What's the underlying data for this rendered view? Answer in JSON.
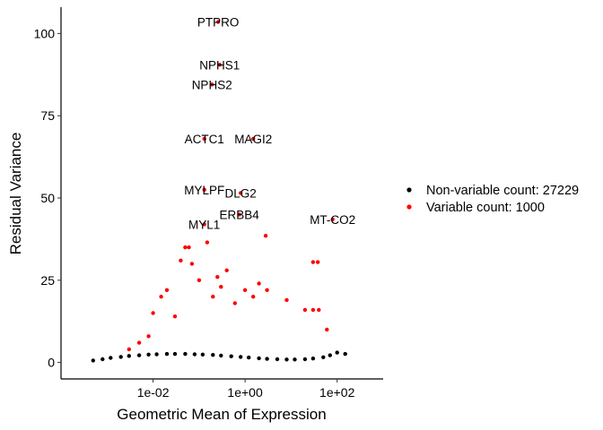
{
  "chart_data": {
    "type": "scatter",
    "title": "",
    "xlabel": "Geometric Mean of Expression",
    "ylabel": "Residual Variance",
    "x_scale": "log10",
    "xlim": [
      0.0001,
      1000
    ],
    "ylim": [
      -5,
      108
    ],
    "x_ticks": [
      {
        "value": 0.01,
        "label": "1e-02"
      },
      {
        "value": 1,
        "label": "1e+00"
      },
      {
        "value": 100,
        "label": "1e+02"
      }
    ],
    "y_ticks": [
      {
        "value": 0,
        "label": "0"
      },
      {
        "value": 25,
        "label": "25"
      },
      {
        "value": 50,
        "label": "50"
      },
      {
        "value": 75,
        "label": "75"
      },
      {
        "value": 100,
        "label": "100"
      }
    ],
    "grid": false,
    "legend": {
      "position": "right",
      "entries": [
        {
          "label": "Non-variable count: 27229",
          "color": "#000000"
        },
        {
          "label": "Variable count: 1000",
          "color": "#ff0000"
        }
      ]
    },
    "series": [
      {
        "name": "Non-variable count: 27229",
        "color": "#000000",
        "points": [
          [
            0.0005,
            0.6
          ],
          [
            0.0008,
            1.0
          ],
          [
            0.0012,
            1.4
          ],
          [
            0.002,
            1.7
          ],
          [
            0.003,
            2.0
          ],
          [
            0.005,
            2.2
          ],
          [
            0.008,
            2.4
          ],
          [
            0.012,
            2.5
          ],
          [
            0.02,
            2.6
          ],
          [
            0.03,
            2.6
          ],
          [
            0.05,
            2.6
          ],
          [
            0.08,
            2.5
          ],
          [
            0.12,
            2.4
          ],
          [
            0.2,
            2.3
          ],
          [
            0.3,
            2.1
          ],
          [
            0.5,
            1.9
          ],
          [
            0.8,
            1.7
          ],
          [
            1.2,
            1.5
          ],
          [
            2,
            1.3
          ],
          [
            3,
            1.1
          ],
          [
            5,
            1.0
          ],
          [
            8,
            0.9
          ],
          [
            12,
            0.9
          ],
          [
            20,
            1.0
          ],
          [
            30,
            1.2
          ],
          [
            50,
            1.6
          ],
          [
            70,
            2.2
          ],
          [
            100,
            3.0
          ],
          [
            150,
            2.6
          ]
        ]
      },
      {
        "name": "Variable count: 1000",
        "color": "#ff0000",
        "points": [
          [
            0.003,
            4.0
          ],
          [
            0.005,
            6.0
          ],
          [
            0.008,
            8.0
          ],
          [
            0.01,
            15.0
          ],
          [
            0.015,
            20.0
          ],
          [
            0.02,
            22.0
          ],
          [
            0.03,
            14.0
          ],
          [
            0.04,
            31.0
          ],
          [
            0.05,
            35.0
          ],
          [
            0.06,
            35.0
          ],
          [
            0.07,
            30.0
          ],
          [
            0.1,
            25.0
          ],
          [
            0.15,
            36.5
          ],
          [
            0.2,
            20.0
          ],
          [
            0.25,
            26.0
          ],
          [
            0.3,
            23.0
          ],
          [
            0.4,
            28.0
          ],
          [
            0.6,
            18.0
          ],
          [
            1.0,
            22.0
          ],
          [
            1.5,
            20.0
          ],
          [
            2.0,
            24.0
          ],
          [
            3.0,
            22.0
          ],
          [
            8.0,
            19.0
          ],
          [
            20.0,
            16.0
          ],
          [
            30.0,
            16.0
          ],
          [
            40.0,
            16.0
          ],
          [
            60.0,
            10.0
          ],
          [
            2.8,
            38.5
          ],
          [
            30.0,
            30.5
          ],
          [
            38.0,
            30.5
          ]
        ]
      }
    ],
    "annotations": [
      {
        "label": "PTPRO",
        "x": 0.26,
        "y": 103.5
      },
      {
        "label": "NPHS1",
        "x": 0.28,
        "y": 90.5
      },
      {
        "label": "NPHS2",
        "x": 0.19,
        "y": 84.5
      },
      {
        "label": "ACTC1",
        "x": 0.13,
        "y": 68.0
      },
      {
        "label": "MAGI2",
        "x": 1.5,
        "y": 68.0
      },
      {
        "label": "MYLPF",
        "x": 0.13,
        "y": 52.5
      },
      {
        "label": "DLG2",
        "x": 0.8,
        "y": 51.5
      },
      {
        "label": "ERBB4",
        "x": 0.75,
        "y": 45.0
      },
      {
        "label": "MT-CO2",
        "x": 80.0,
        "y": 43.5
      },
      {
        "label": "MYL1",
        "x": 0.13,
        "y": 42.0
      }
    ]
  }
}
